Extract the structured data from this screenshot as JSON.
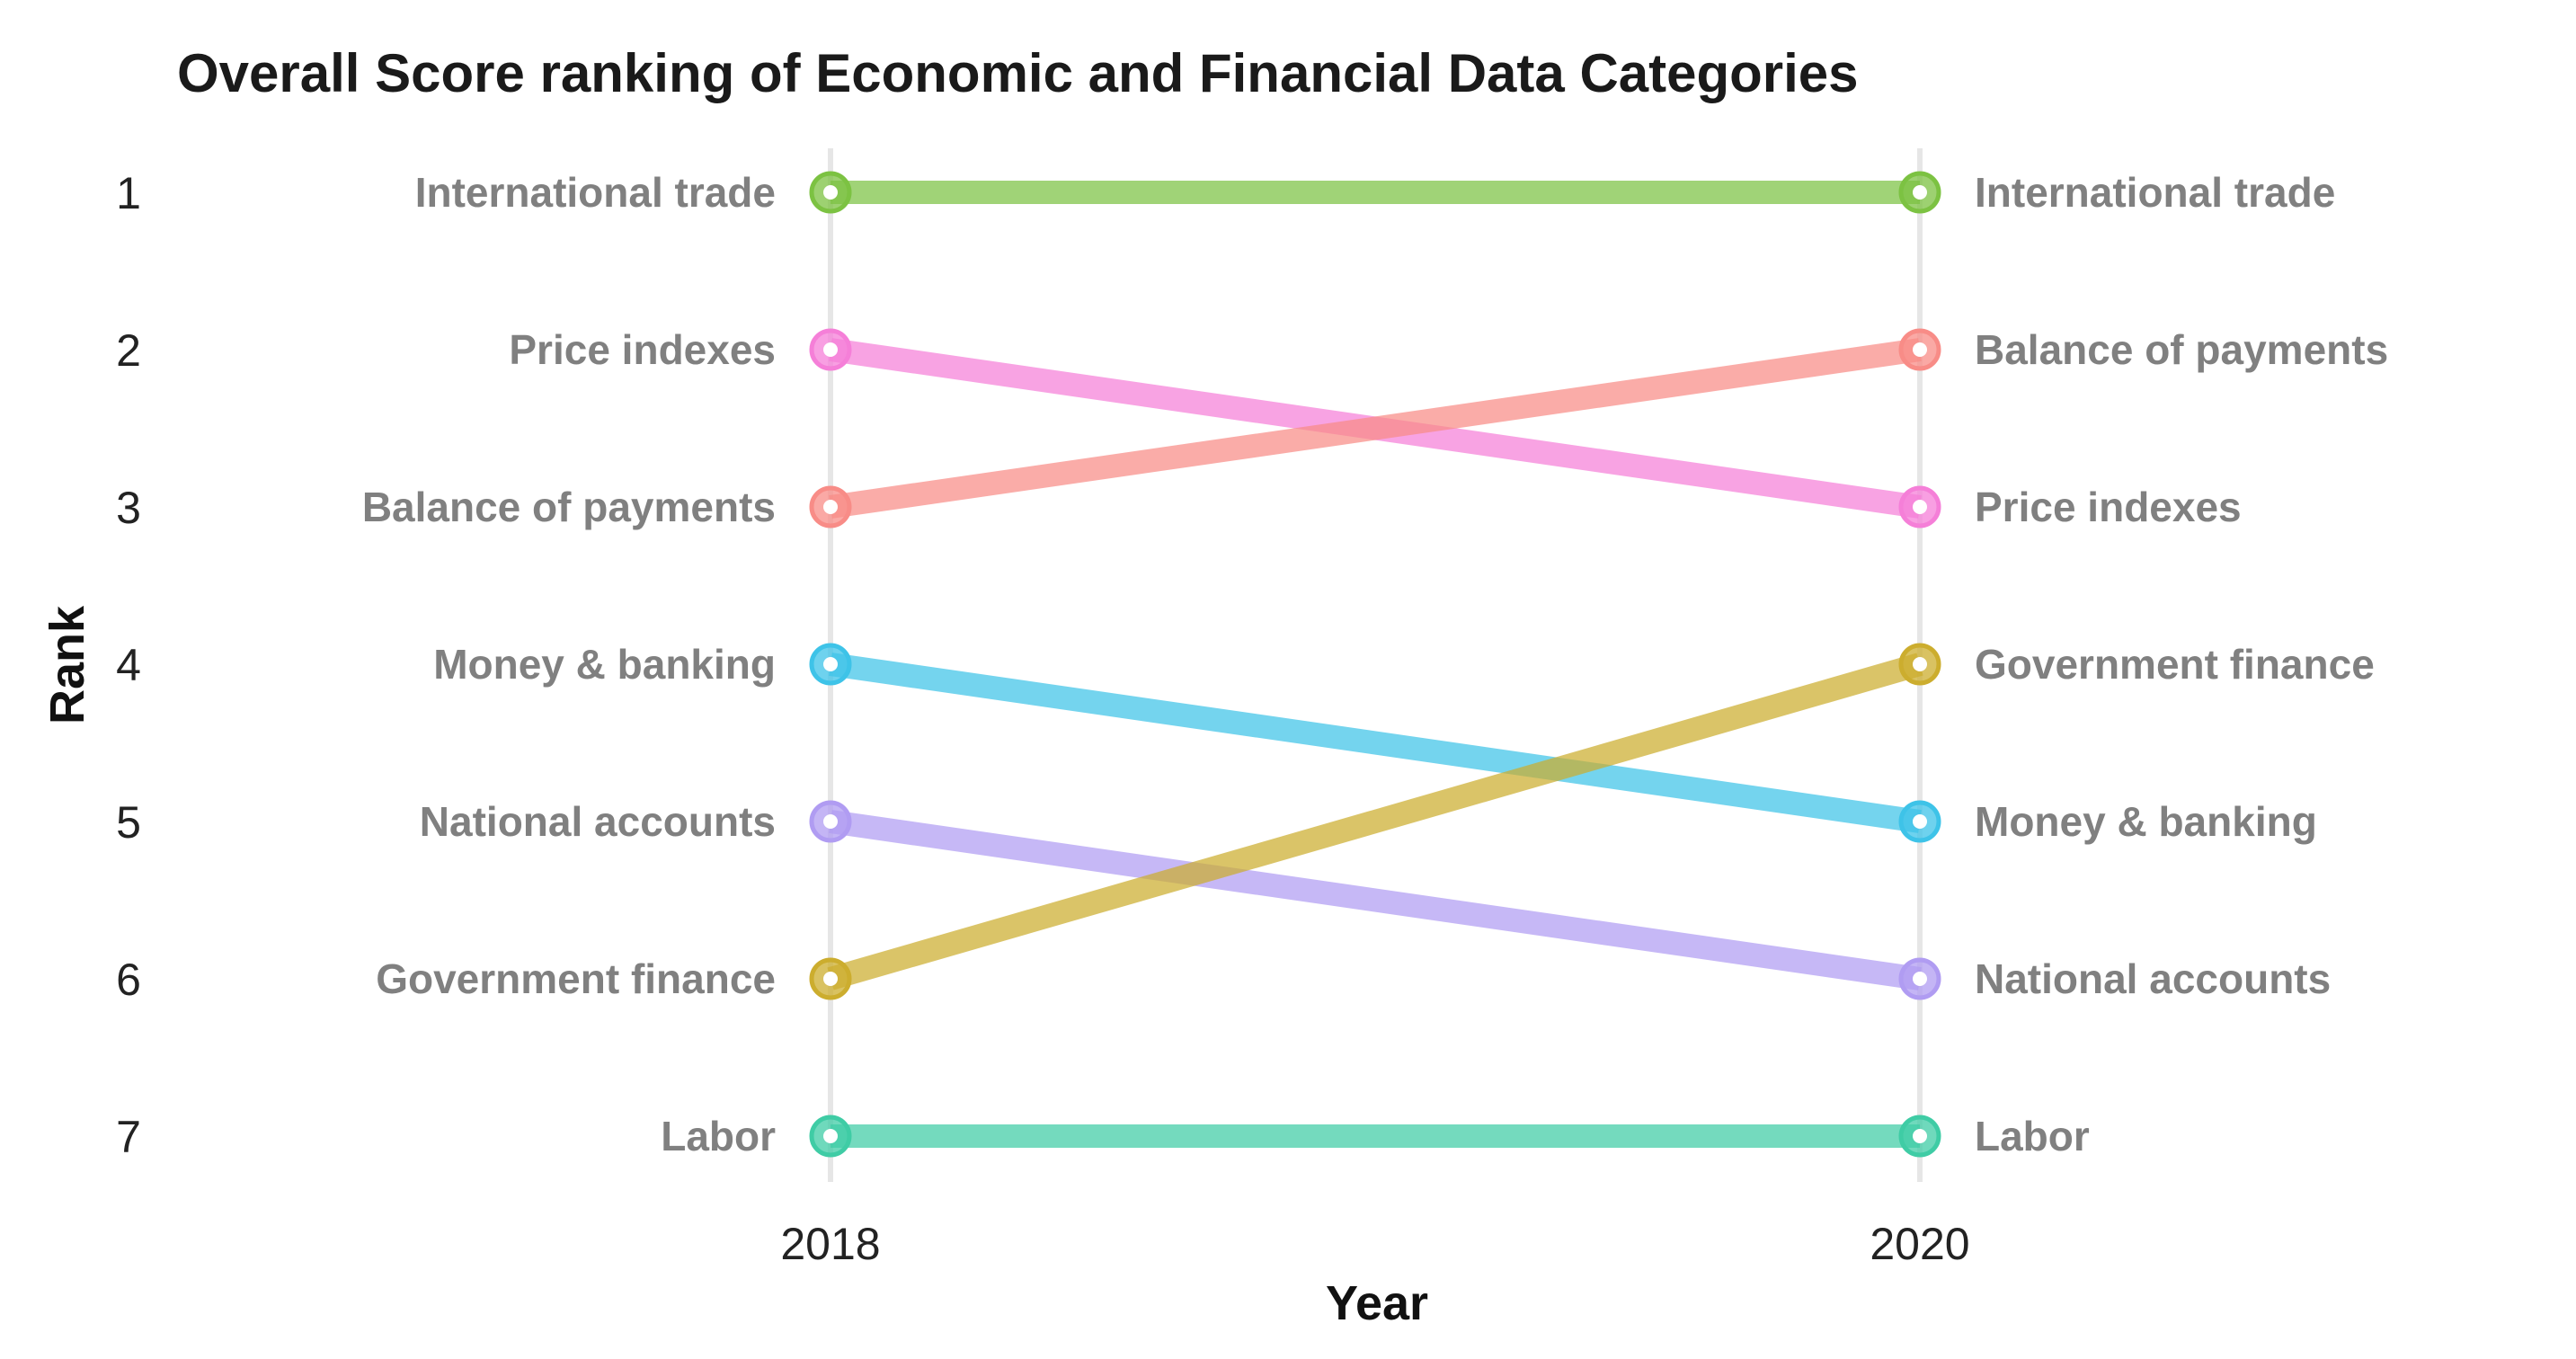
{
  "chart_data": {
    "type": "line",
    "title": "Overall Score ranking of Economic and Financial Data Categories",
    "xlabel": "Year",
    "ylabel": "Rank",
    "x": [
      "2018",
      "2020"
    ],
    "y_ticks": [
      "1",
      "2",
      "3",
      "4",
      "5",
      "6",
      "7"
    ],
    "ylim": [
      1,
      7
    ],
    "y_reversed": true,
    "grid": "vertical at each year",
    "legend": "none (labels at line ends)",
    "series": [
      {
        "name": "International trade",
        "values": [
          1,
          1
        ],
        "color": "#7CC242"
      },
      {
        "name": "Price indexes",
        "values": [
          2,
          3
        ],
        "color": "#F57FD8"
      },
      {
        "name": "Balance of payments",
        "values": [
          3,
          2
        ],
        "color": "#F88C87"
      },
      {
        "name": "Money & banking",
        "values": [
          4,
          5
        ],
        "color": "#3EC3E8"
      },
      {
        "name": "National accounts",
        "values": [
          5,
          6
        ],
        "color": "#B09CF2"
      },
      {
        "name": "Government finance",
        "values": [
          6,
          4
        ],
        "color": "#CCAD2E"
      },
      {
        "name": "Labor",
        "values": [
          7,
          7
        ],
        "color": "#3FCCA5"
      }
    ]
  }
}
